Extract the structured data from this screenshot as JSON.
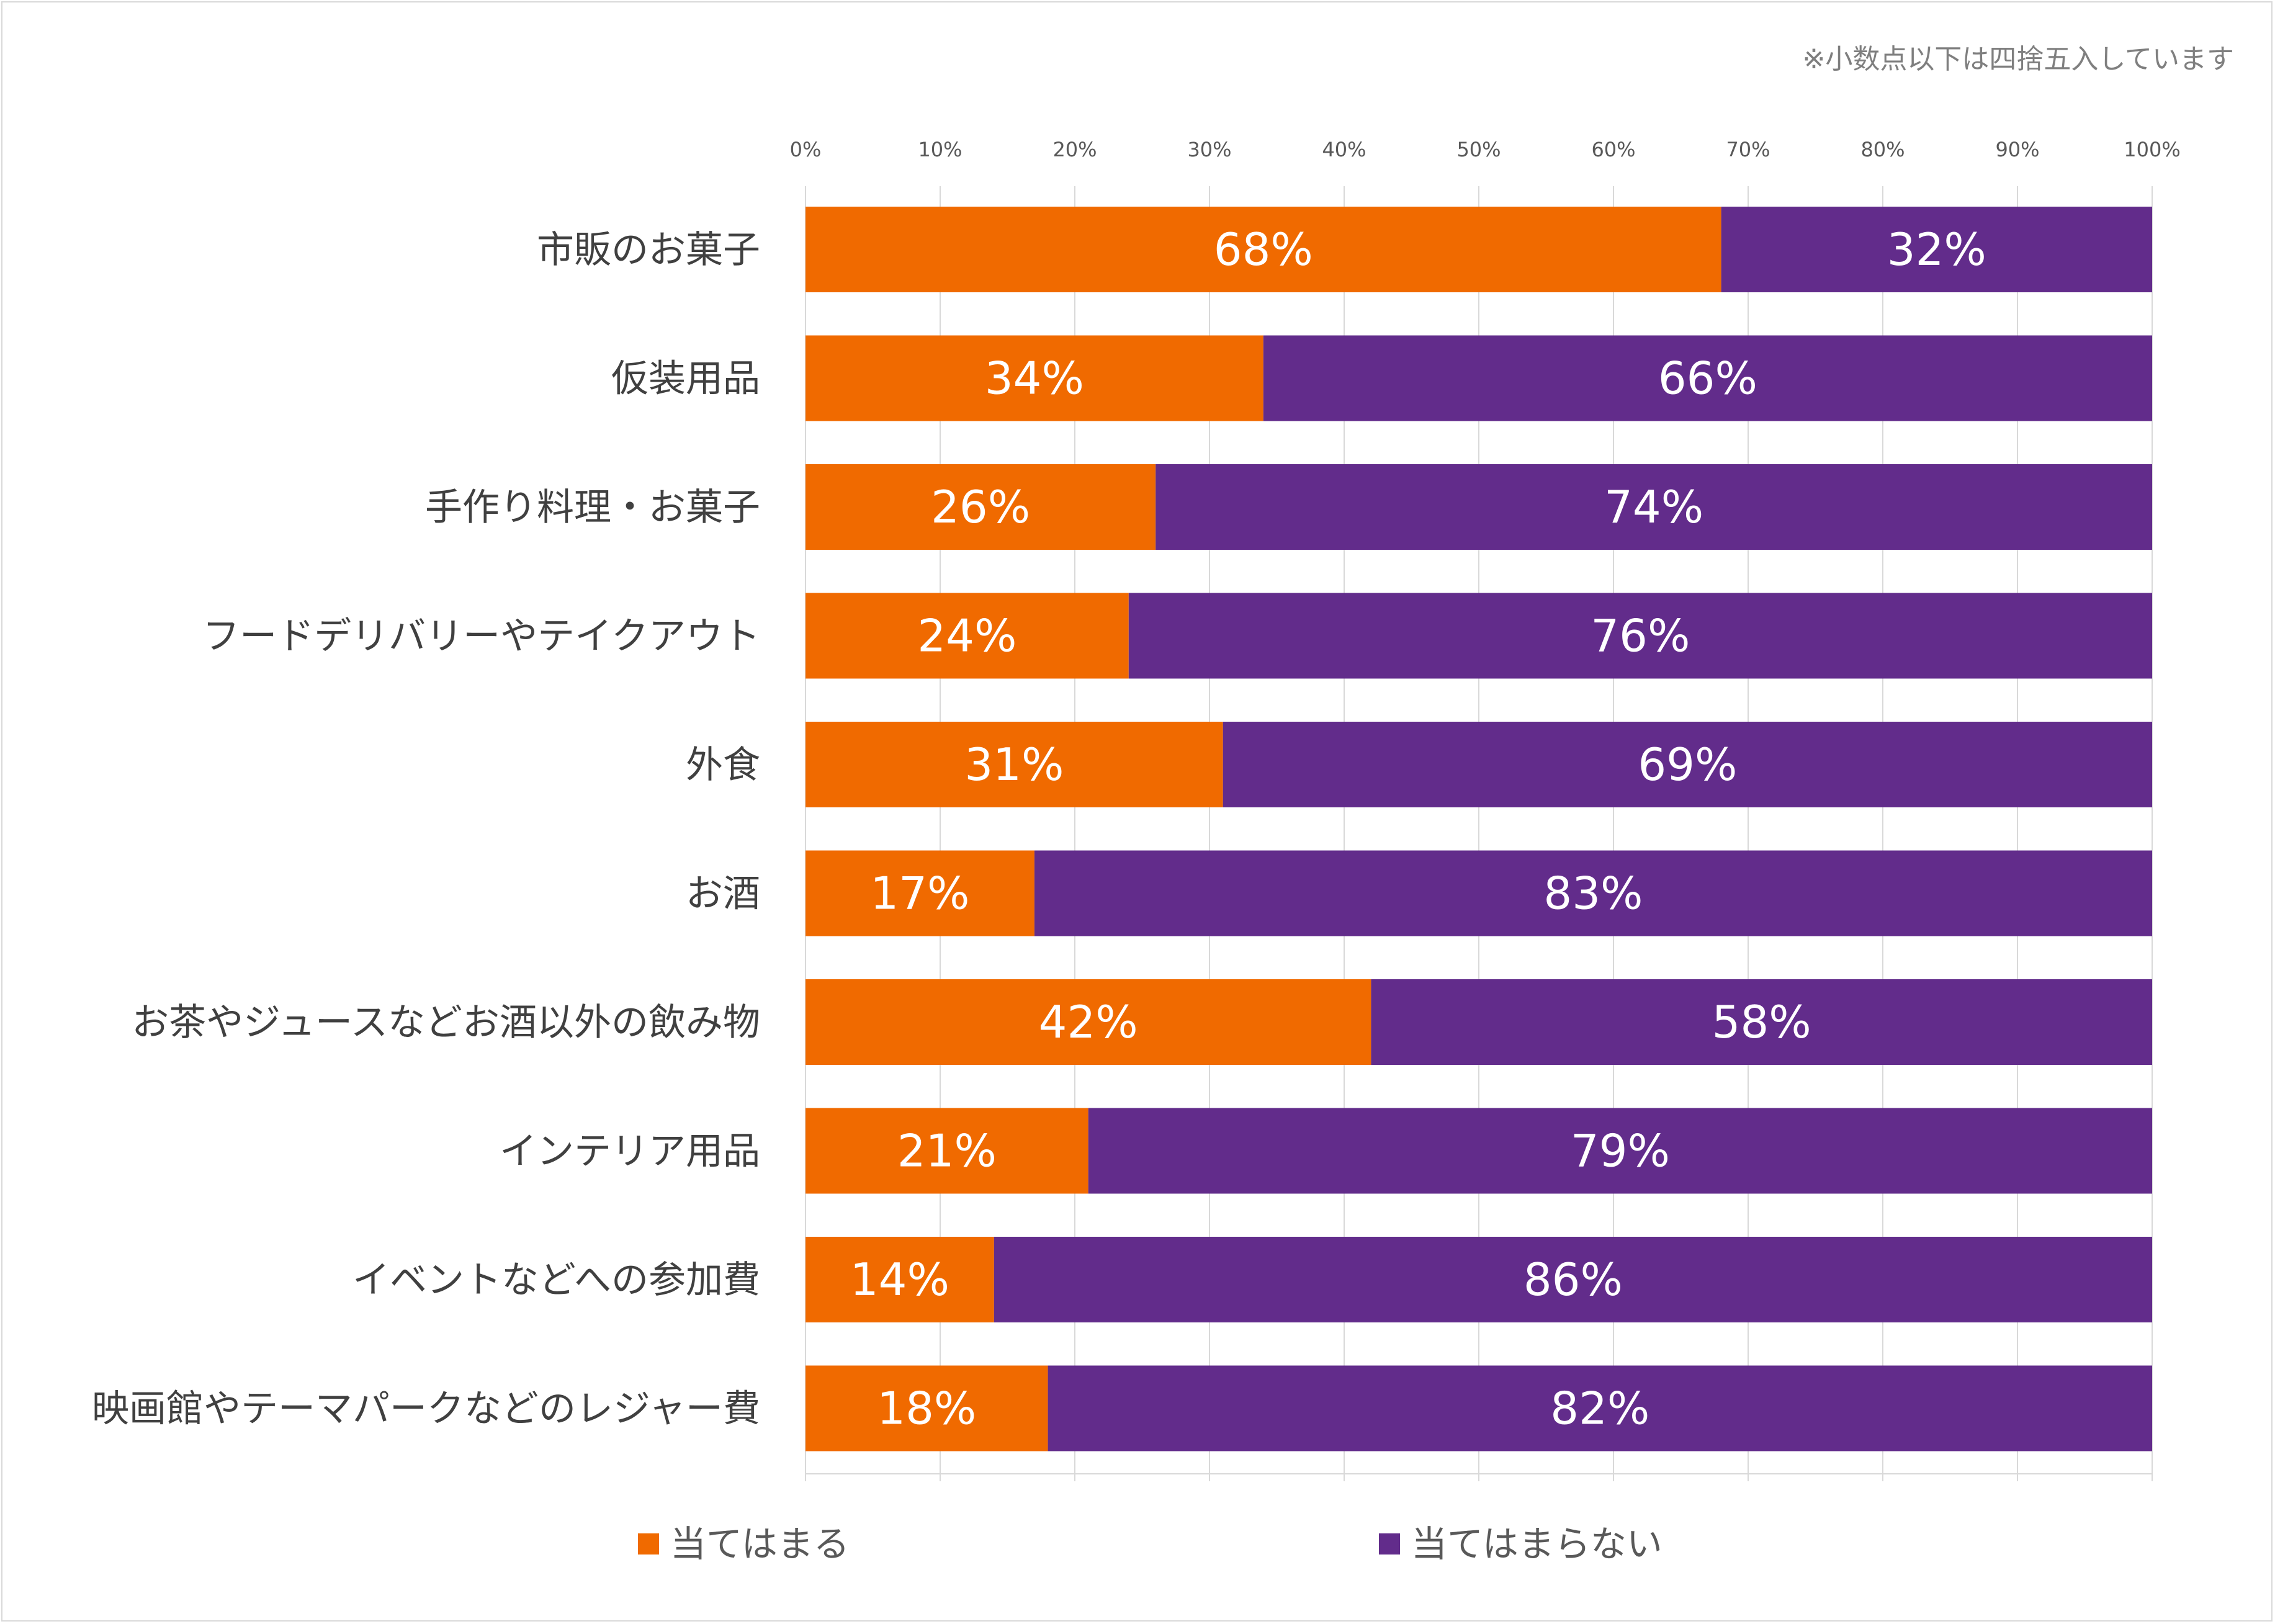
{
  "chart_data": {
    "type": "bar",
    "orientation": "horizontal",
    "stacked": true,
    "note": "※小数点以下は四捨五入しています",
    "xlim": [
      0,
      100
    ],
    "ticks": [
      "0%",
      "10%",
      "20%",
      "30%",
      "40%",
      "50%",
      "60%",
      "70%",
      "80%",
      "90%",
      "100%"
    ],
    "categories": [
      "市販のお菓子",
      "仮装用品",
      "手作り料理・お菓子",
      "フードデリバリーやテイクアウト",
      "外食",
      "お酒",
      "お茶やジュースなどお酒以外の飲み物",
      "インテリア用品",
      "イベントなどへの参加費",
      "映画館やテーマパークなどのレジャー費"
    ],
    "series": [
      {
        "name": "当てはまる",
        "color": "#f06a00",
        "values": [
          68,
          34,
          26,
          24,
          31,
          17,
          42,
          21,
          14,
          18
        ]
      },
      {
        "name": "当てはまらない",
        "color": "#622c8b",
        "values": [
          32,
          66,
          74,
          76,
          69,
          83,
          58,
          79,
          86,
          82
        ]
      }
    ],
    "legend": "bottom",
    "grid": true
  }
}
